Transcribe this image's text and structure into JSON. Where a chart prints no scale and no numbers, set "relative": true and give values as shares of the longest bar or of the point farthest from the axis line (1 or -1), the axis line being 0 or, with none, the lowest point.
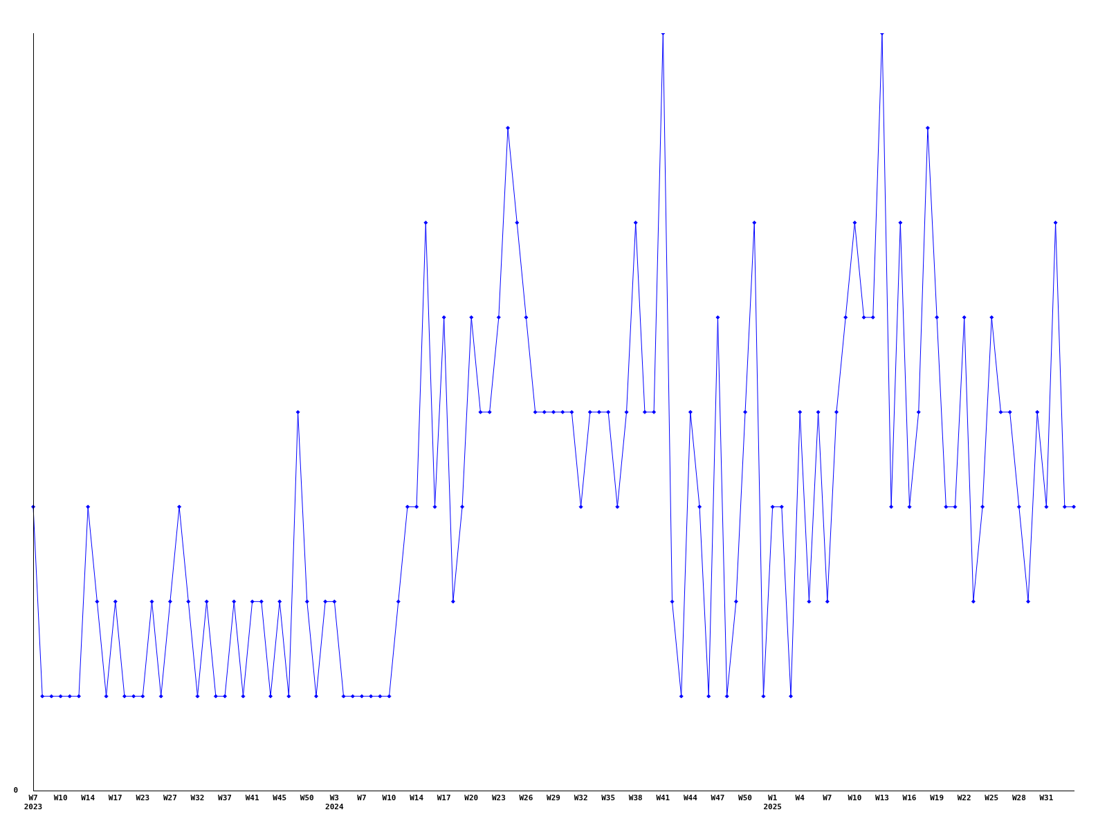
{
  "chart_data": {
    "type": "line",
    "relative": true,
    "color": "#0000ff",
    "marker": "diamond",
    "grid": false,
    "legend": false,
    "annotations": [
      "0"
    ],
    "categories": [
      "W7\n2023",
      null,
      null,
      "W10",
      null,
      null,
      "W14",
      null,
      null,
      "W17",
      null,
      null,
      "W23",
      null,
      null,
      "W27",
      null,
      null,
      "W32",
      null,
      null,
      "W37",
      null,
      null,
      "W41",
      null,
      null,
      "W45",
      null,
      null,
      "W50",
      null,
      null,
      "W3\n2024",
      null,
      null,
      "W7",
      null,
      null,
      "W10",
      null,
      null,
      "W14",
      null,
      null,
      "W17",
      null,
      null,
      "W20",
      null,
      null,
      "W23",
      null,
      null,
      "W26",
      null,
      null,
      "W29",
      null,
      null,
      "W32",
      null,
      null,
      "W35",
      null,
      null,
      "W38",
      null,
      null,
      "W41",
      null,
      null,
      "W44",
      null,
      null,
      "W47",
      null,
      null,
      "W50",
      null,
      null,
      "W1\n2025",
      null,
      null,
      "W4",
      null,
      null,
      "W7",
      null,
      null,
      "W10",
      null,
      null,
      "W13",
      null,
      null,
      "W16",
      null,
      null,
      "W19",
      null,
      null,
      "W22",
      null,
      null,
      "W25",
      null,
      null,
      "W28",
      null,
      null,
      "W31",
      null,
      null,
      null
    ],
    "values": [
      0.375,
      0.125,
      0.125,
      0.125,
      0.125,
      0.125,
      0.375,
      0.25,
      0.125,
      0.25,
      0.125,
      0.125,
      0.125,
      0.25,
      0.125,
      0.25,
      0.375,
      0.25,
      0.125,
      0.25,
      0.125,
      0.125,
      0.25,
      0.125,
      0.25,
      0.25,
      0.125,
      0.25,
      0.125,
      0.5,
      0.25,
      0.125,
      0.25,
      0.25,
      0.125,
      0.125,
      0.125,
      0.125,
      0.125,
      0.125,
      0.25,
      0.375,
      0.375,
      0.75,
      0.375,
      0.625,
      0.25,
      0.375,
      0.625,
      0.5,
      0.5,
      0.625,
      0.875,
      0.75,
      0.625,
      0.5,
      0.5,
      0.5,
      0.5,
      0.5,
      0.375,
      0.5,
      0.5,
      0.5,
      0.375,
      0.5,
      0.75,
      0.5,
      0.5,
      1,
      0.25,
      0.125,
      0.5,
      0.375,
      0.125,
      0.625,
      0.125,
      0.25,
      0.5,
      0.75,
      0.125,
      0.375,
      0.375,
      0.125,
      0.5,
      0.25,
      0.5,
      0.25,
      0.5,
      0.625,
      0.75,
      0.625,
      0.625,
      1,
      0.375,
      0.75,
      0.375,
      0.5,
      0.875,
      0.625,
      0.375,
      0.375,
      0.625,
      0.25,
      0.375,
      0.625,
      0.5,
      0.5,
      0.375,
      0.25,
      0.5,
      0.375,
      0.75,
      0.375,
      0.375
    ]
  }
}
